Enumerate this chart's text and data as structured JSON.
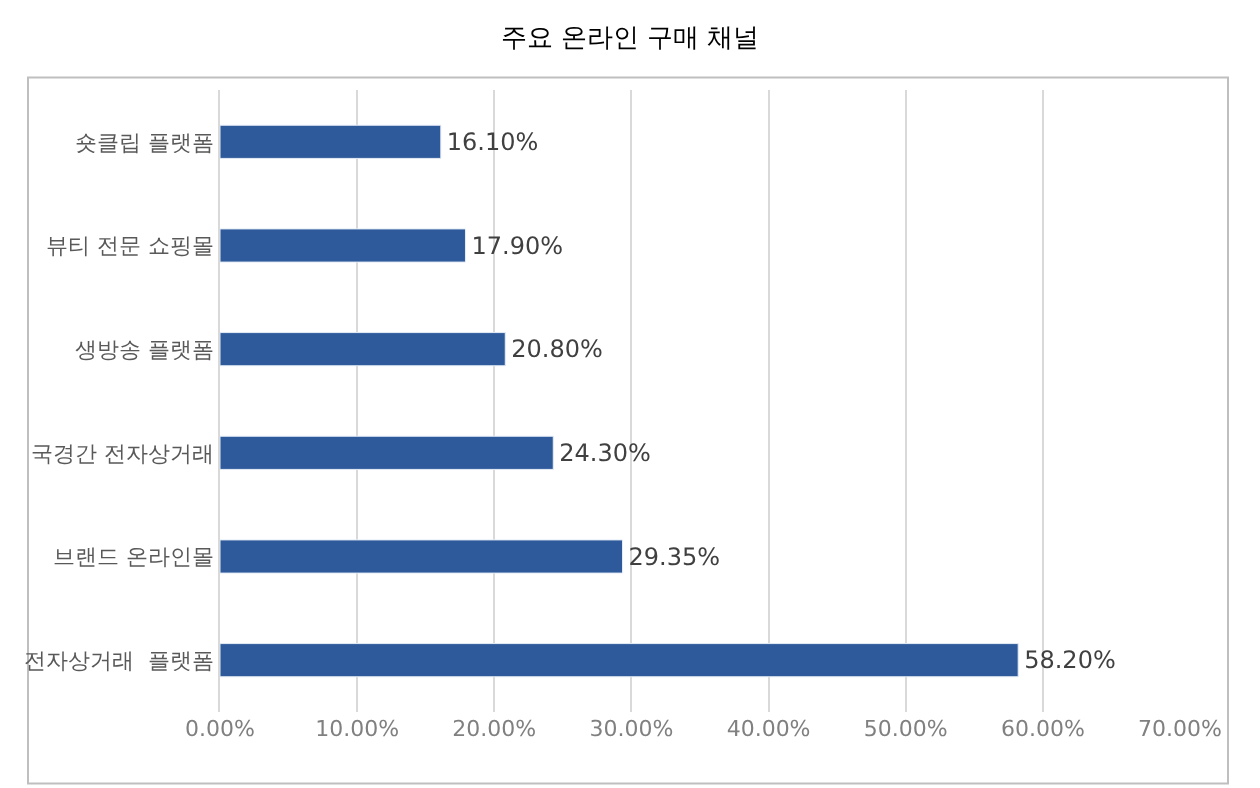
{
  "chart_data": {
    "type": "bar",
    "orientation": "horizontal",
    "title": "주요 온라인 구매 채널",
    "categories": [
      "숏클립 플랫폼",
      "뷰티 전문 쇼핑몰",
      "생방송 플랫폼",
      "국경간 전자상거래",
      "브랜드 온라인몰",
      "전자상거래  플랫폼"
    ],
    "values": [
      16.1,
      17.9,
      20.8,
      24.3,
      29.35,
      58.2
    ],
    "value_labels": [
      "16.10%",
      "17.90%",
      "20.80%",
      "24.30%",
      "29.35%",
      "58.20%"
    ],
    "color": "#2e5a9c",
    "xlim": [
      0,
      70
    ],
    "xticks": [
      {
        "value": 0,
        "label": "0.00%"
      },
      {
        "value": 10,
        "label": "10.00%"
      },
      {
        "value": 20,
        "label": "20.00%"
      },
      {
        "value": 30,
        "label": "30.00%"
      },
      {
        "value": 40,
        "label": "40.00%"
      },
      {
        "value": 50,
        "label": "50.00%"
      },
      {
        "value": 60,
        "label": "60.00%"
      },
      {
        "value": 70,
        "label": "70.00%"
      }
    ],
    "grid": "x",
    "legend": false
  }
}
